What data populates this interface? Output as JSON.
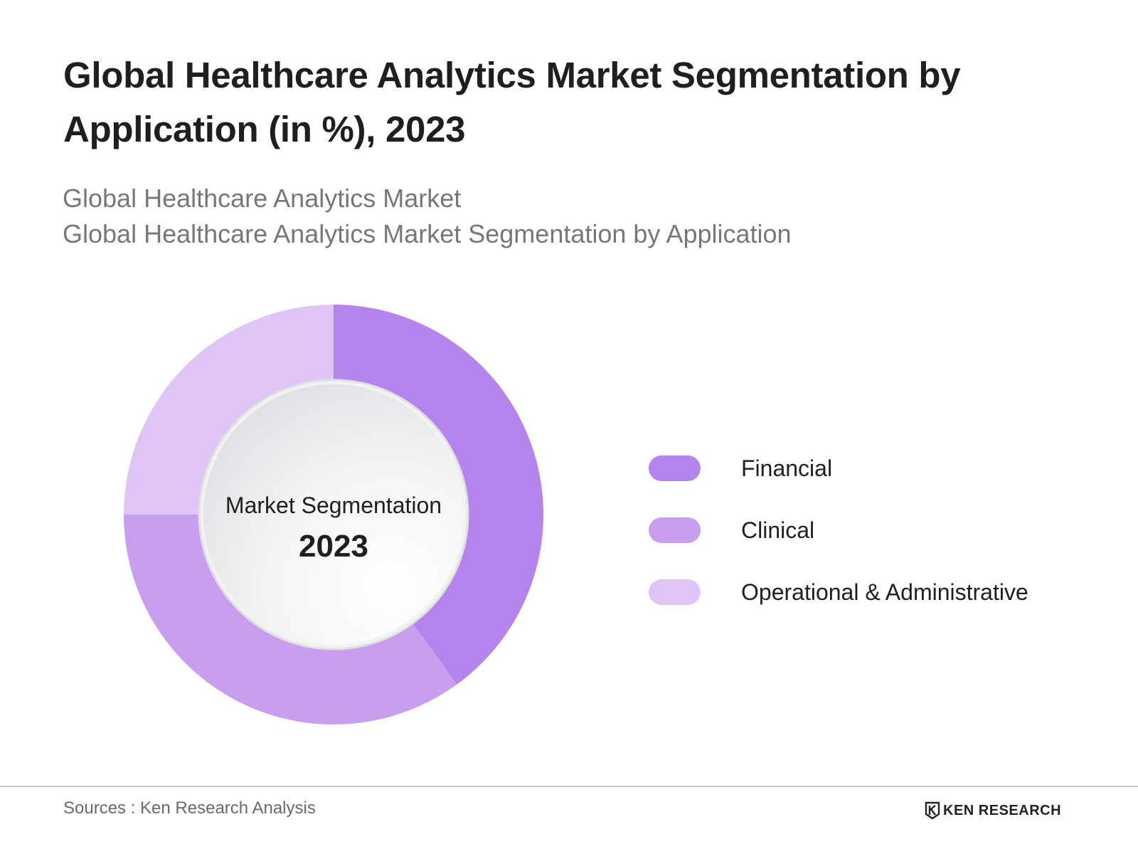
{
  "header": {
    "title": "Global Healthcare Analytics Market Segmentation by Application (in %), 2023",
    "subtitle_line1": "Global Healthcare Analytics Market",
    "subtitle_line2": "Global Healthcare Analytics Market Segmentation by Application"
  },
  "center": {
    "label": "Market Segmentation",
    "year": "2023"
  },
  "chart_data": {
    "type": "pie",
    "title": "Global Healthcare Analytics Market Segmentation by Application (in %), 2023",
    "categories": [
      "Financial",
      "Clinical",
      "Operational & Administrative"
    ],
    "values": [
      40,
      35,
      25
    ],
    "colors": [
      "#b484ec",
      "#c89eef",
      "#dfc4f7"
    ],
    "donut": true,
    "start_angle_deg": 0,
    "legend_placement": "right"
  },
  "footer": {
    "source": "Sources : Ken Research Analysis",
    "brand": "KEN RESEARCH",
    "brand_icon": "ken-research-logo-icon"
  }
}
